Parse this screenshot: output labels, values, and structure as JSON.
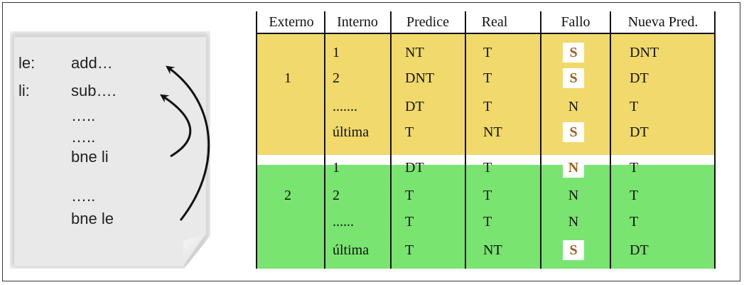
{
  "code_card": {
    "lines": [
      {
        "label": "le:",
        "code": "add…"
      },
      {
        "label": "li:",
        "code": "sub…."
      },
      {
        "label": "",
        "code": "….."
      },
      {
        "label": "",
        "code": "….."
      },
      {
        "label": "",
        "code": "bne li"
      },
      {
        "label": "",
        "code": "….."
      },
      {
        "label": "",
        "code": "bne le"
      }
    ]
  },
  "table": {
    "headers": [
      "Externo",
      "Interno",
      "Predice",
      "Real",
      "Fallo",
      "Nueva Pred."
    ],
    "blocks": [
      {
        "externo": "1",
        "color": "#f1d96b",
        "rows": [
          {
            "interno": "1",
            "predice": "NT",
            "real": "T",
            "fallo": "S",
            "boxed": true,
            "nueva": "DNT"
          },
          {
            "interno": "2",
            "predice": "DNT",
            "real": "T",
            "fallo": "S",
            "boxed": true,
            "nueva": "DT"
          },
          {
            "interno": ".......",
            "predice": "DT",
            "real": "T",
            "fallo": "N",
            "boxed": false,
            "nueva": "T"
          },
          {
            "interno": "última",
            "predice": "T",
            "real": "NT",
            "fallo": "S",
            "boxed": true,
            "nueva": "DT"
          }
        ]
      },
      {
        "externo": "2",
        "color": "#79e46f",
        "rows": [
          {
            "interno": "1",
            "predice": "DT",
            "real": "T",
            "fallo": "N",
            "boxed": true,
            "nueva": "T"
          },
          {
            "interno": "2",
            "predice": "T",
            "real": "T",
            "fallo": "N",
            "boxed": false,
            "nueva": "T"
          },
          {
            "interno": "......",
            "predice": "T",
            "real": "T",
            "fallo": "N",
            "boxed": false,
            "nueva": "T"
          },
          {
            "interno": "última",
            "predice": "T",
            "real": "NT",
            "fallo": "S",
            "boxed": true,
            "nueva": "DT"
          }
        ]
      }
    ]
  }
}
